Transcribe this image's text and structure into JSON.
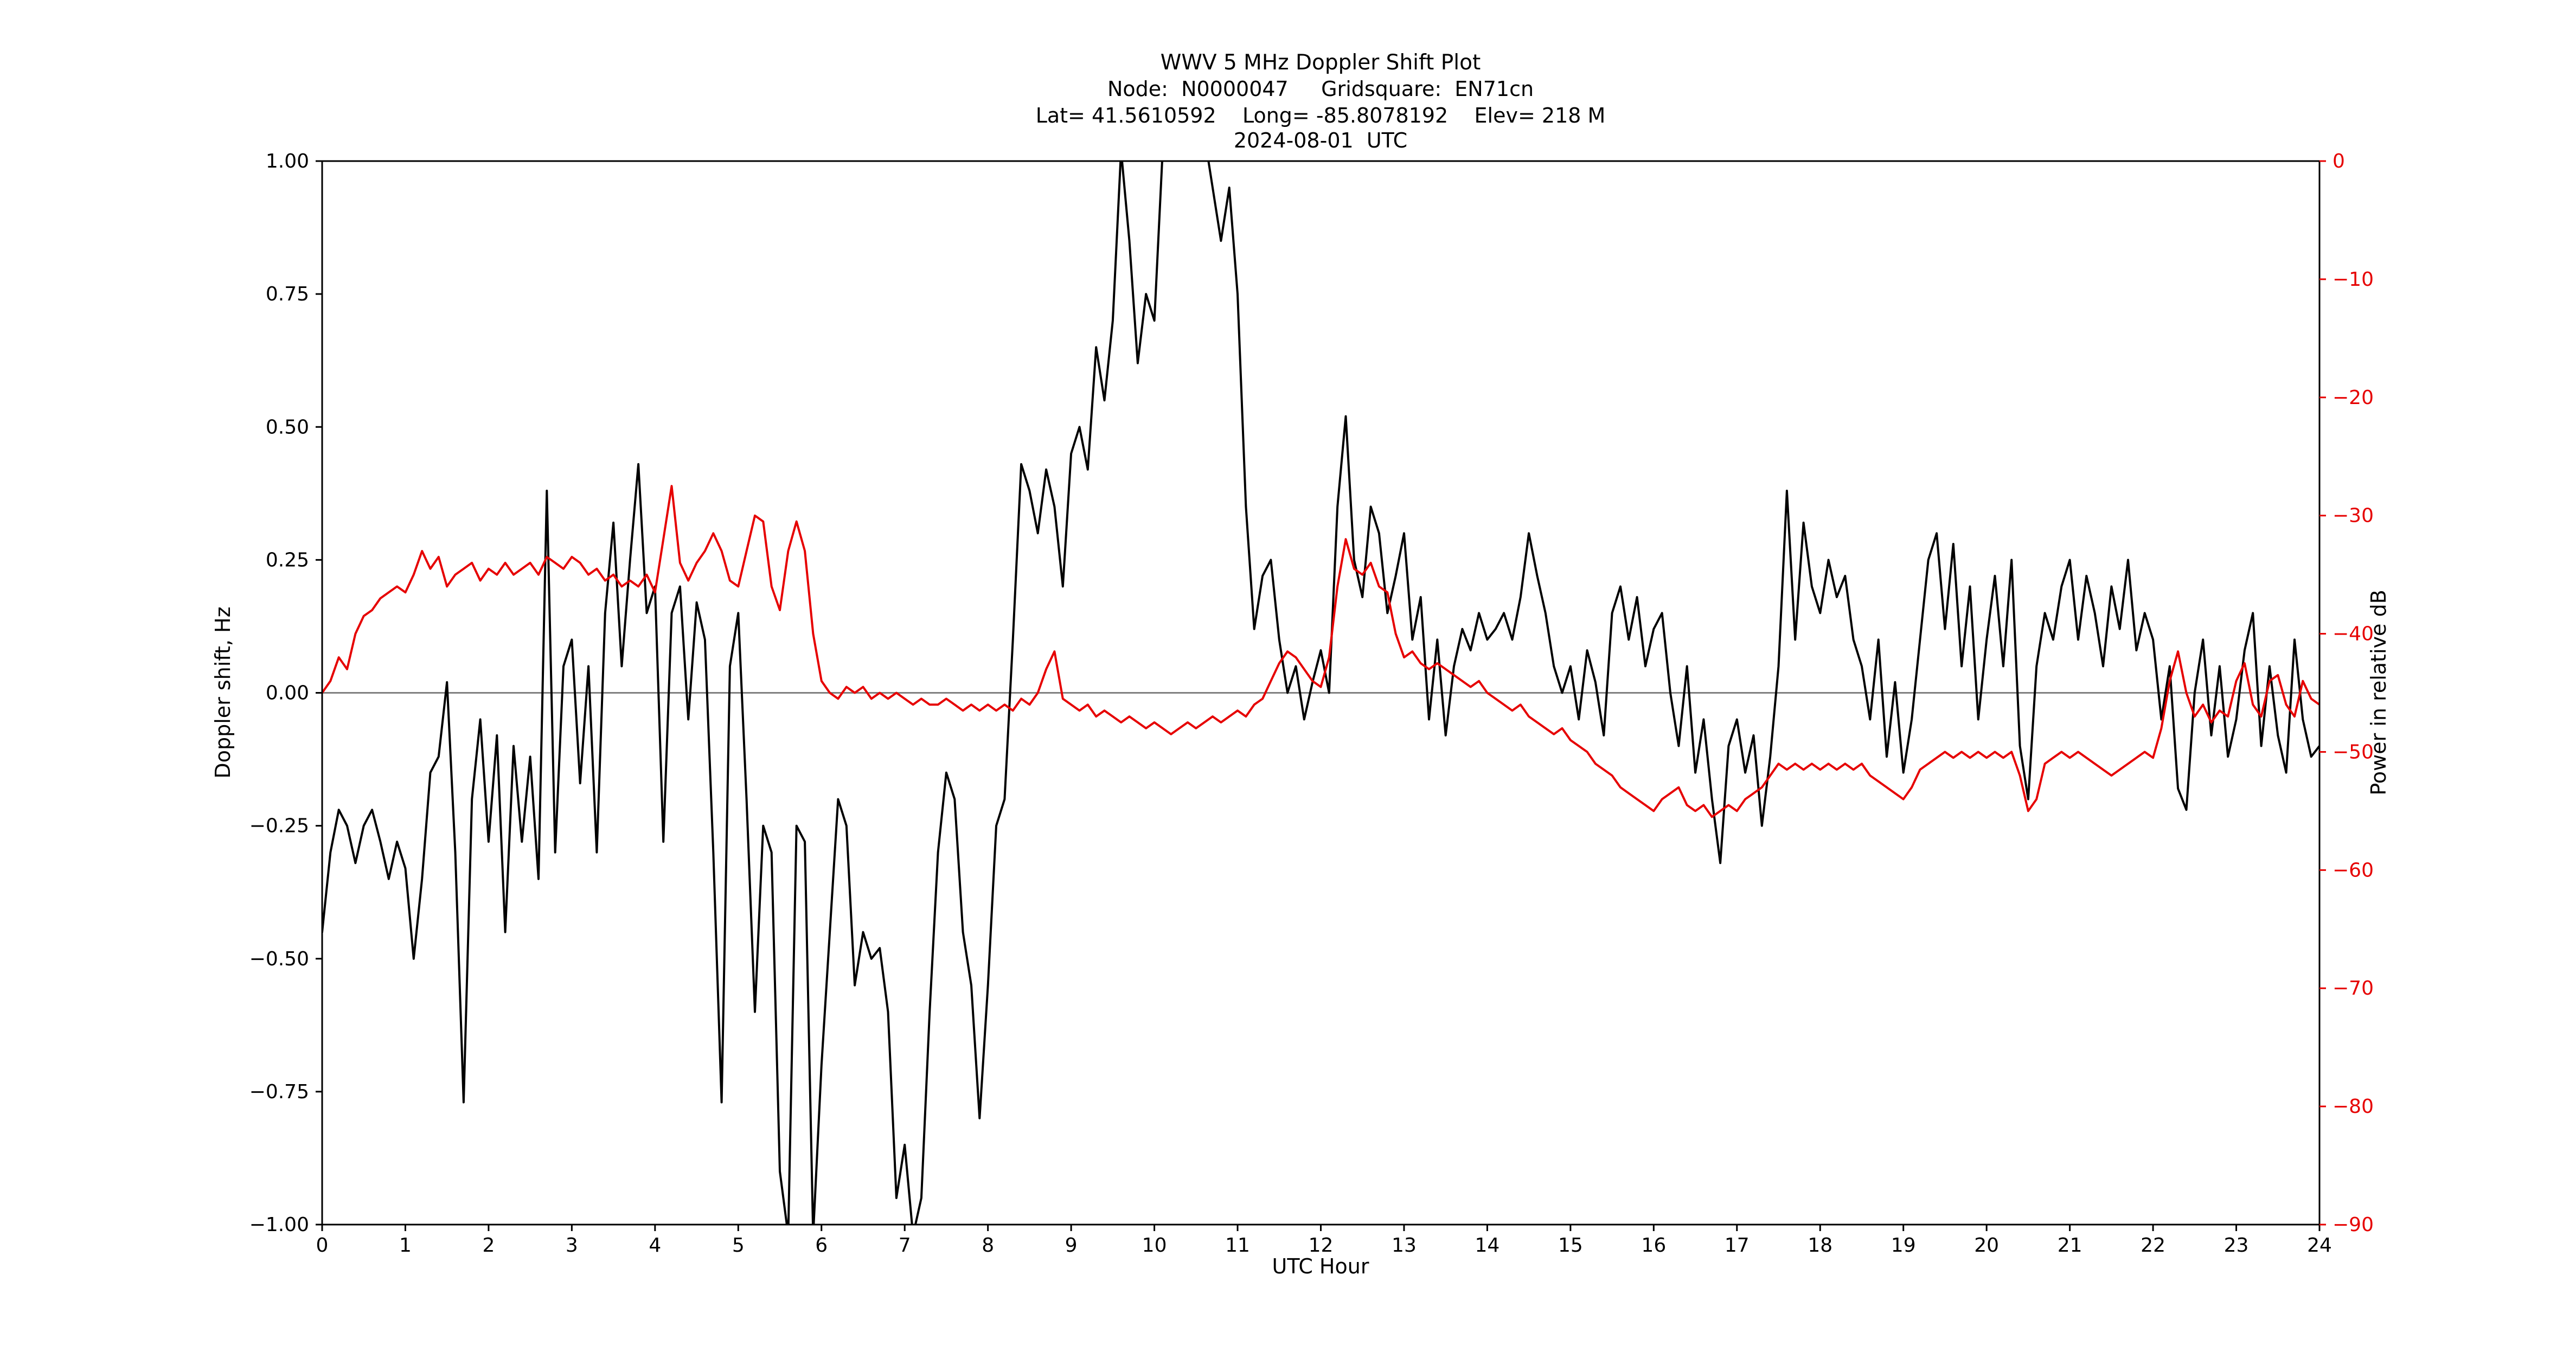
{
  "chart_data": {
    "type": "line",
    "title": "WWV 5 MHz Doppler Shift Plot",
    "subtitle": [
      "Node:  N0000047     Gridsquare:  EN71cn",
      "Lat= 41.5610592    Long= -85.8078192    Elev= 218 M",
      "2024-08-01  UTC"
    ],
    "xlabel": "UTC Hour",
    "ylabel_left": "Doppler shift, Hz",
    "ylabel_right": "Power in relative dB",
    "xlim": [
      0,
      24
    ],
    "ylim_left": [
      -1.0,
      1.0
    ],
    "ylim_right": [
      -90,
      0
    ],
    "x_ticks": [
      0,
      1,
      2,
      3,
      4,
      5,
      6,
      7,
      8,
      9,
      10,
      11,
      12,
      13,
      14,
      15,
      16,
      17,
      18,
      19,
      20,
      21,
      22,
      23,
      24
    ],
    "y_ticks_left": [
      -1.0,
      -0.75,
      -0.5,
      -0.25,
      0.0,
      0.25,
      0.5,
      0.75,
      1.0
    ],
    "y_ticks_right": [
      -90,
      -80,
      -70,
      -60,
      -50,
      -40,
      -30,
      -20,
      -10,
      0
    ],
    "grid": false,
    "zero_line_left": 0.0,
    "legend": "none",
    "colors": {
      "doppler": "#000000",
      "power": "#e60000",
      "zero_line": "#808080",
      "axis": "#000000"
    },
    "x_start": 0,
    "x_step": 0.1,
    "series": [
      {
        "name": "doppler_shift_hz",
        "label": "Doppler shift (Hz)",
        "axis": "left",
        "color_key": "doppler",
        "values": [
          -0.45,
          -0.3,
          -0.22,
          -0.25,
          -0.32,
          -0.25,
          -0.22,
          -0.28,
          -0.35,
          -0.28,
          -0.33,
          -0.5,
          -0.35,
          -0.15,
          -0.12,
          0.02,
          -0.3,
          -0.77,
          -0.2,
          -0.05,
          -0.28,
          -0.08,
          -0.45,
          -0.1,
          -0.28,
          -0.12,
          -0.35,
          0.38,
          -0.3,
          0.05,
          0.1,
          -0.17,
          0.05,
          -0.3,
          0.15,
          0.32,
          0.05,
          0.25,
          0.43,
          0.15,
          0.2,
          -0.28,
          0.15,
          0.2,
          -0.05,
          0.17,
          0.1,
          -0.3,
          -0.77,
          0.05,
          0.15,
          -0.2,
          -0.6,
          -0.25,
          -0.3,
          -0.9,
          -1.02,
          -0.25,
          -0.28,
          -1.02,
          -0.7,
          -0.45,
          -0.2,
          -0.25,
          -0.55,
          -0.45,
          -0.5,
          -0.48,
          -0.6,
          -0.95,
          -0.85,
          -1.02,
          -0.95,
          -0.6,
          -0.3,
          -0.15,
          -0.2,
          -0.45,
          -0.55,
          -0.8,
          -0.55,
          -0.25,
          -0.2,
          0.1,
          0.43,
          0.38,
          0.3,
          0.42,
          0.35,
          0.2,
          0.45,
          0.5,
          0.42,
          0.65,
          0.55,
          0.7,
          1.02,
          0.85,
          0.62,
          0.75,
          0.7,
          1.02,
          1.05,
          1.05,
          1.05,
          1.05,
          1.05,
          0.95,
          0.85,
          0.95,
          0.75,
          0.35,
          0.12,
          0.22,
          0.25,
          0.1,
          0.0,
          0.05,
          -0.05,
          0.02,
          0.08,
          0.0,
          0.35,
          0.52,
          0.25,
          0.18,
          0.35,
          0.3,
          0.15,
          0.22,
          0.3,
          0.1,
          0.18,
          -0.05,
          0.1,
          -0.08,
          0.05,
          0.12,
          0.08,
          0.15,
          0.1,
          0.12,
          0.15,
          0.1,
          0.18,
          0.3,
          0.22,
          0.15,
          0.05,
          0.0,
          0.05,
          -0.05,
          0.08,
          0.02,
          -0.08,
          0.15,
          0.2,
          0.1,
          0.18,
          0.05,
          0.12,
          0.15,
          0.0,
          -0.1,
          0.05,
          -0.15,
          -0.05,
          -0.2,
          -0.32,
          -0.1,
          -0.05,
          -0.15,
          -0.08,
          -0.25,
          -0.12,
          0.05,
          0.38,
          0.1,
          0.32,
          0.2,
          0.15,
          0.25,
          0.18,
          0.22,
          0.1,
          0.05,
          -0.05,
          0.1,
          -0.12,
          0.02,
          -0.15,
          -0.05,
          0.1,
          0.25,
          0.3,
          0.12,
          0.28,
          0.05,
          0.2,
          -0.05,
          0.1,
          0.22,
          0.05,
          0.25,
          -0.1,
          -0.2,
          0.05,
          0.15,
          0.1,
          0.2,
          0.25,
          0.1,
          0.22,
          0.15,
          0.05,
          0.2,
          0.12,
          0.25,
          0.08,
          0.15,
          0.1,
          -0.05,
          0.05,
          -0.18,
          -0.22,
          0.0,
          0.1,
          -0.08,
          0.05,
          -0.12,
          -0.05,
          0.08,
          0.15,
          -0.1,
          0.05,
          -0.08,
          -0.15,
          0.1,
          -0.05,
          -0.12,
          -0.1
        ]
      },
      {
        "name": "power_relative_db",
        "label": "Power (relative dB)",
        "axis": "right",
        "color_key": "power",
        "values": [
          -45,
          -44,
          -42,
          -43,
          -40,
          -38.5,
          -38,
          -37,
          -36.5,
          -36,
          -36.5,
          -35,
          -33,
          -34.5,
          -33.5,
          -36,
          -35,
          -34.5,
          -34,
          -35.5,
          -34.5,
          -35,
          -34,
          -35,
          -34.5,
          -34,
          -35,
          -33.5,
          -34,
          -34.5,
          -33.5,
          -34,
          -35,
          -34.5,
          -35.5,
          -35,
          -36,
          -35.5,
          -36,
          -35,
          -36.5,
          -32,
          -27.5,
          -34,
          -35.5,
          -34,
          -33,
          -31.5,
          -33,
          -35.5,
          -36,
          -33,
          -30,
          -30.5,
          -36,
          -38,
          -33,
          -30.5,
          -33,
          -40,
          -44,
          -45,
          -45.5,
          -44.5,
          -45,
          -44.5,
          -45.5,
          -45,
          -45.5,
          -45,
          -45.5,
          -46,
          -45.5,
          -46,
          -46,
          -45.5,
          -46,
          -46.5,
          -46,
          -46.5,
          -46,
          -46.5,
          -46,
          -46.5,
          -45.5,
          -46,
          -45,
          -43,
          -41.5,
          -45.5,
          -46,
          -46.5,
          -46,
          -47,
          -46.5,
          -47,
          -47.5,
          -47,
          -47.5,
          -48,
          -47.5,
          -48,
          -48.5,
          -48,
          -47.5,
          -48,
          -47.5,
          -47,
          -47.5,
          -47,
          -46.5,
          -47,
          -46,
          -45.5,
          -44,
          -42.5,
          -41.5,
          -42,
          -43,
          -44,
          -44.5,
          -42,
          -36,
          -32,
          -34.5,
          -35,
          -34,
          -36,
          -36.5,
          -40,
          -42,
          -41.5,
          -42.5,
          -43,
          -42.5,
          -43,
          -43.5,
          -44,
          -44.5,
          -44,
          -45,
          -45.5,
          -46,
          -46.5,
          -46,
          -47,
          -47.5,
          -48,
          -48.5,
          -48,
          -49,
          -49.5,
          -50,
          -51,
          -51.5,
          -52,
          -53,
          -53.5,
          -54,
          -54.5,
          -55,
          -54,
          -53.5,
          -53,
          -54.5,
          -55,
          -54.5,
          -55.5,
          -55,
          -54.5,
          -55,
          -54,
          -53.5,
          -53,
          -52,
          -51,
          -51.5,
          -51,
          -51.5,
          -51,
          -51.5,
          -51,
          -51.5,
          -51,
          -51.5,
          -51,
          -52,
          -52.5,
          -53,
          -53.5,
          -54,
          -53,
          -51.5,
          -51,
          -50.5,
          -50,
          -50.5,
          -50,
          -50.5,
          -50,
          -50.5,
          -50,
          -50.5,
          -50,
          -52,
          -55,
          -54,
          -51,
          -50.5,
          -50,
          -50.5,
          -50,
          -50.5,
          -51,
          -51.5,
          -52,
          -51.5,
          -51,
          -50.5,
          -50,
          -50.5,
          -48,
          -44,
          -41.5,
          -45,
          -47,
          -46,
          -47.5,
          -46.5,
          -47,
          -44,
          -42.5,
          -46,
          -47,
          -44,
          -43.5,
          -46,
          -47,
          -44,
          -45.5,
          -46
        ]
      }
    ]
  }
}
